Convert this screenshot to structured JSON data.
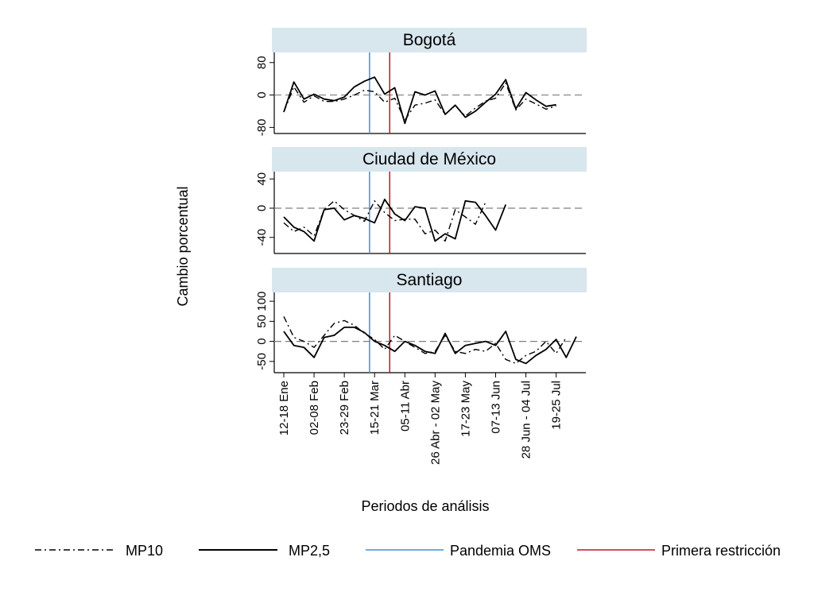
{
  "figure": {
    "ylabel": "Cambio porcentual",
    "xlabel": "Periodos de análisis"
  },
  "legend": [
    {
      "key": "mp10",
      "label": "MP10"
    },
    {
      "key": "mp25",
      "label": "MP2,5"
    },
    {
      "key": "pandemia",
      "label": "Pandemia OMS"
    },
    {
      "key": "restriccion",
      "label": "Primera restricción"
    }
  ],
  "colors": {
    "pandemia": "#3b8fe4",
    "restriccion": "#c8102e",
    "panel_header": "#d8e6ee",
    "series": "#000000",
    "refline": "#7f7f7f"
  },
  "x_tick_labels": [
    {
      "i": 0,
      "label": "12-18 Ene"
    },
    {
      "i": 3,
      "label": "02-08 Feb"
    },
    {
      "i": 6,
      "label": "23-29 Feb"
    },
    {
      "i": 9,
      "label": "15-21 Mar"
    },
    {
      "i": 12,
      "label": "05-11 Abr"
    },
    {
      "i": 15,
      "label": "26 Abr - 02 May"
    },
    {
      "i": 18,
      "label": "17-23 May"
    },
    {
      "i": 21,
      "label": "07-13 Jun"
    },
    {
      "i": 24,
      "label": "28 Jun - 04 Jul"
    },
    {
      "i": 27,
      "label": "19-25 Jul"
    }
  ],
  "chart_data": [
    {
      "type": "line",
      "title": "Bogotá",
      "ylim": [
        -95,
        105
      ],
      "yticks": [
        {
          "v": 80,
          "label": "80"
        },
        {
          "v": 0,
          "label": "0"
        },
        {
          "v": -80,
          "label": "-80"
        }
      ],
      "vlines": {
        "pandemia": 8.5,
        "restriccion": 10.5
      },
      "series": [
        {
          "name": "MP10",
          "values": [
            -42,
            20,
            -18,
            -2,
            -16,
            -16,
            -10,
            0,
            12,
            8,
            -18,
            -8,
            -62,
            -25,
            -20,
            -12,
            -48,
            -26,
            -52,
            -32,
            -15,
            -8,
            30,
            -37,
            -10,
            -22,
            -35,
            -27
          ]
        },
        {
          "name": "MP2,5",
          "values": [
            -42,
            32,
            -10,
            2,
            -10,
            -14,
            -5,
            20,
            34,
            44,
            2,
            18,
            -70,
            8,
            0,
            10,
            -48,
            -25,
            -55,
            -40,
            -18,
            2,
            38,
            -34,
            6,
            -12,
            -28,
            -24
          ]
        }
      ]
    },
    {
      "type": "line",
      "title": "Ciudad de México",
      "ylim": [
        -62,
        50
      ],
      "yticks": [
        {
          "v": 40,
          "label": "40"
        },
        {
          "v": 0,
          "label": "0"
        },
        {
          "v": -40,
          "label": "-40"
        }
      ],
      "vlines": {
        "pandemia": 8.5,
        "restriccion": 10.5
      },
      "series": [
        {
          "name": "MP10",
          "values": [
            -20,
            -32,
            -26,
            -38,
            -2,
            10,
            -2,
            -10,
            -18,
            10,
            -6,
            -17,
            -15,
            -15,
            -35,
            -30,
            -45,
            -2,
            -12,
            -22,
            8
          ]
        },
        {
          "name": "MP2,5",
          "values": [
            -12,
            -26,
            -32,
            -45,
            -2,
            0,
            -16,
            -10,
            -14,
            -20,
            12,
            -8,
            -17,
            2,
            0,
            -45,
            -35,
            -42,
            10,
            8,
            -10,
            -30,
            5
          ]
        }
      ]
    },
    {
      "type": "line",
      "title": "Santiago",
      "ylim": [
        -78,
        122
      ],
      "yticks": [
        {
          "v": 100,
          "label": "100"
        },
        {
          "v": 50,
          "label": "50"
        },
        {
          "v": 0,
          "label": "0"
        },
        {
          "v": -50,
          "label": "-50"
        }
      ],
      "vlines": {
        "pandemia": 8.5,
        "restriccion": 10.5
      },
      "series": [
        {
          "name": "MP10",
          "values": [
            62,
            10,
            0,
            -15,
            15,
            45,
            52,
            40,
            20,
            5,
            -20,
            15,
            0,
            -15,
            -30,
            -25,
            15,
            -25,
            -30,
            -20,
            -25,
            -5,
            -45,
            -55,
            -35,
            -25,
            0,
            -30,
            10
          ]
        },
        {
          "name": "MP2,5",
          "values": [
            25,
            -10,
            -15,
            -40,
            10,
            15,
            35,
            35,
            22,
            0,
            -10,
            -25,
            0,
            -10,
            -25,
            -30,
            20,
            -30,
            -10,
            -5,
            0,
            -10,
            25,
            -45,
            -55,
            -35,
            -20,
            5,
            -40,
            12
          ]
        }
      ]
    }
  ]
}
